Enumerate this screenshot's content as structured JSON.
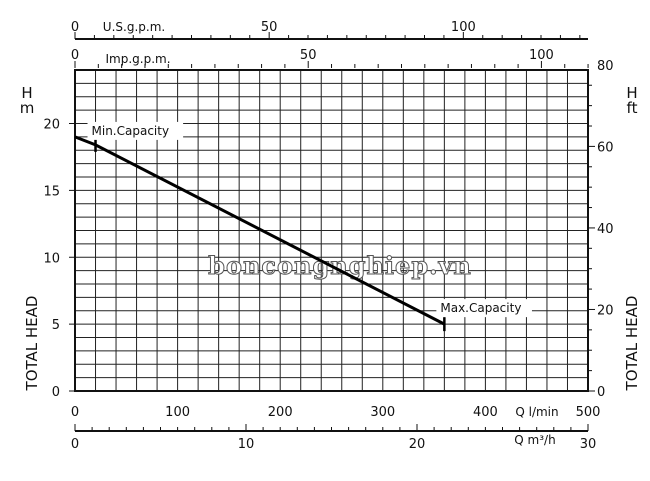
{
  "chart_data": {
    "type": "line",
    "x_label": "Q l/min",
    "x_ticks": [
      0,
      100,
      200,
      300,
      400,
      500
    ],
    "xlim": [
      0,
      500
    ],
    "x_m3h_label": "Q m³/h",
    "x_m3h_ticks": [
      0,
      10,
      20,
      30
    ],
    "usgpm_label": "U.S.g.p.m.",
    "usgpm_ticks": [
      0,
      50,
      100
    ],
    "impgpm_label": "Imp.g.p.m.",
    "impgpm_ticks": [
      0,
      50,
      100
    ],
    "y_left_unit": [
      "H",
      "m"
    ],
    "y_left_ticks": [
      0,
      5,
      10,
      15,
      20
    ],
    "ylim": [
      0,
      24
    ],
    "y_right_unit": [
      "H",
      "ft"
    ],
    "y_right_ticks": [
      0,
      20,
      40,
      60,
      80
    ],
    "y_title": "TOTAL HEAD",
    "grid": true,
    "series": [
      {
        "x": [
          0,
          20,
          360
        ],
        "y": [
          19.0,
          18.4,
          5.0
        ]
      }
    ],
    "annotations": [
      {
        "text": "Min.Capacity",
        "x": 20,
        "y": 18.4
      },
      {
        "text": "Max.Capacity",
        "x": 360,
        "y": 5.0
      }
    ],
    "watermark": "boncongnghiep.vn"
  }
}
